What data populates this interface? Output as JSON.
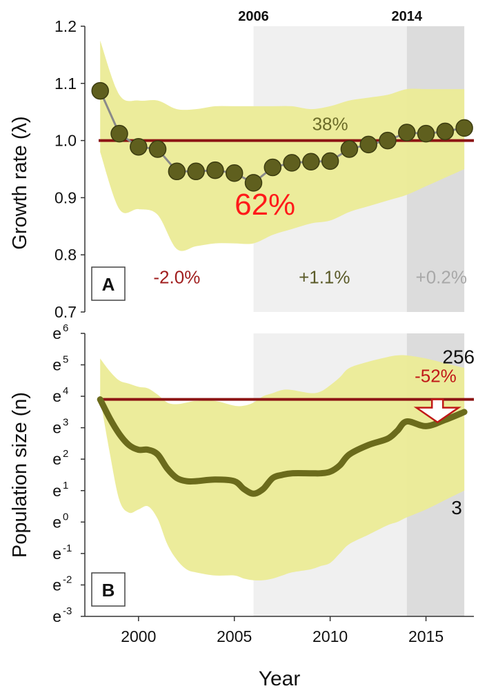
{
  "chart_data": [
    {
      "panel_label": "A",
      "type": "line",
      "ylabel": "Growth rate (λ)",
      "ylim": [
        0.7,
        1.2
      ],
      "y_ticks": [
        "0.7",
        "0.8",
        "0.9",
        "1.0",
        "1.1",
        "1.2"
      ],
      "y_tick_values": [
        0.7,
        0.8,
        0.9,
        1.0,
        1.1,
        1.2
      ],
      "reference_line": 1.0,
      "shaded_periods": [
        {
          "label": "2006",
          "from": 2006,
          "to": 2014,
          "color": "#f0f0f0"
        },
        {
          "label": "2014",
          "from": 2014,
          "to": 2017,
          "color": "#dcdcdc"
        }
      ],
      "series": [
        {
          "x": [
            1998,
            1999,
            2000,
            2001,
            2002,
            2003,
            2004,
            2005,
            2006,
            2007,
            2008,
            2009,
            2010,
            2011,
            2012,
            2013,
            2014,
            2015,
            2016,
            2017
          ],
          "y": [
            1.087,
            1.012,
            0.989,
            0.985,
            0.946,
            0.946,
            0.948,
            0.943,
            0.926,
            0.953,
            0.961,
            0.963,
            0.964,
            0.985,
            0.993,
            1.0,
            1.014,
            1.012,
            1.016,
            1.022
          ],
          "band_low": [
            0.98,
            0.88,
            0.88,
            0.87,
            0.81,
            0.815,
            0.82,
            0.82,
            0.82,
            0.835,
            0.845,
            0.855,
            0.86,
            0.875,
            0.885,
            0.895,
            0.905,
            0.92,
            0.935,
            0.95
          ],
          "band_high": [
            1.175,
            1.08,
            1.07,
            1.07,
            1.055,
            1.055,
            1.06,
            1.06,
            1.06,
            1.06,
            1.06,
            1.055,
            1.06,
            1.07,
            1.075,
            1.08,
            1.09,
            1.09,
            1.09,
            1.09
          ],
          "color": "#5f5f1e",
          "band_color": "#ebeb96"
        }
      ],
      "annotations": [
        {
          "text": "38%",
          "x": 2010.0,
          "y": 1.018,
          "color": "#6b6b28"
        },
        {
          "text": "62%",
          "x": 2006.6,
          "y": 0.87,
          "color": "#ff1a1a"
        },
        {
          "text": "-2.0%",
          "x": 2002.0,
          "y": 0.75,
          "color": "#a01e1e"
        },
        {
          "text": "+1.1%",
          "x": 2009.7,
          "y": 0.75,
          "color": "#5a5a28"
        },
        {
          "text": "+0.2%",
          "x": 2015.8,
          "y": 0.75,
          "color": "#a8a8a8"
        }
      ]
    },
    {
      "panel_label": "B",
      "type": "line",
      "xlabel": "Year",
      "ylabel": "Population size (n)",
      "y_scale": "log (natural)",
      "ylim": [
        -3,
        6
      ],
      "y_ticks": [
        {
          "base": "e",
          "exp": "-3",
          "value": -3
        },
        {
          "base": "e",
          "exp": "-2",
          "value": -2
        },
        {
          "base": "e",
          "exp": "-1",
          "value": -1
        },
        {
          "base": "e",
          "exp": "0",
          "value": 0
        },
        {
          "base": "e",
          "exp": "1",
          "value": 1
        },
        {
          "base": "e",
          "exp": "2",
          "value": 2
        },
        {
          "base": "e",
          "exp": "3",
          "value": 3
        },
        {
          "base": "e",
          "exp": "4",
          "value": 4
        },
        {
          "base": "e",
          "exp": "5",
          "value": 5
        },
        {
          "base": "e",
          "exp": "6",
          "value": 6
        }
      ],
      "x_ticks": [
        "2000",
        "2005",
        "2010",
        "2015"
      ],
      "x_tick_values": [
        2000,
        2005,
        2010,
        2015
      ],
      "xlim": [
        1997.2,
        2017.5
      ],
      "reference_line": 3.9,
      "series": [
        {
          "x": [
            1998,
            1998.5,
            1999,
            1999.5,
            2000,
            2000.5,
            2001,
            2001.5,
            2002,
            2002.5,
            2003,
            2004,
            2005,
            2005.5,
            2006,
            2006.5,
            2007,
            2007.5,
            2008,
            2009,
            2009.5,
            2010,
            2010.5,
            2011,
            2012,
            2013,
            2013.5,
            2014,
            2015,
            2016,
            2017
          ],
          "y": [
            3.9,
            3.3,
            2.8,
            2.45,
            2.3,
            2.3,
            2.15,
            1.7,
            1.4,
            1.3,
            1.3,
            1.35,
            1.3,
            1.05,
            0.9,
            1.05,
            1.4,
            1.5,
            1.55,
            1.55,
            1.55,
            1.6,
            1.8,
            2.15,
            2.45,
            2.65,
            2.9,
            3.2,
            3.05,
            3.25,
            3.5
          ],
          "band_low": [
            3.95,
            2.2,
            0.7,
            0.3,
            0.4,
            0.5,
            0.1,
            -0.7,
            -1.2,
            -1.5,
            -1.6,
            -1.7,
            -1.7,
            -1.8,
            -1.85,
            -1.85,
            -1.8,
            -1.7,
            -1.6,
            -1.5,
            -1.4,
            -1.3,
            -1.0,
            -0.7,
            -0.4,
            -0.1,
            0.0,
            0.15,
            0.4,
            0.7,
            1.0
          ],
          "band_high": [
            5.2,
            4.8,
            4.5,
            4.4,
            4.3,
            4.25,
            4.05,
            3.8,
            3.75,
            3.8,
            3.85,
            3.85,
            3.7,
            3.7,
            3.8,
            4.0,
            4.1,
            4.2,
            4.2,
            4.1,
            4.15,
            4.35,
            4.6,
            4.9,
            5.1,
            5.25,
            5.3,
            5.3,
            5.2,
            5.05,
            4.9
          ],
          "color": "#6b6b1c",
          "band_color": "#ebeb96"
        }
      ],
      "annotations": [
        {
          "text": "256",
          "x": 2016.7,
          "y": 5.05,
          "color": "#111111"
        },
        {
          "text": "-52%",
          "x": 2015.5,
          "y": 4.45,
          "color": "#c01818"
        },
        {
          "text": "3",
          "x": 2016.6,
          "y": 0.25,
          "color": "#111111"
        }
      ],
      "arrow": {
        "from_y": 3.9,
        "to_y": 3.35,
        "x_from": 2014.5,
        "x_to": 2016.7,
        "color": "#c01818"
      }
    }
  ]
}
